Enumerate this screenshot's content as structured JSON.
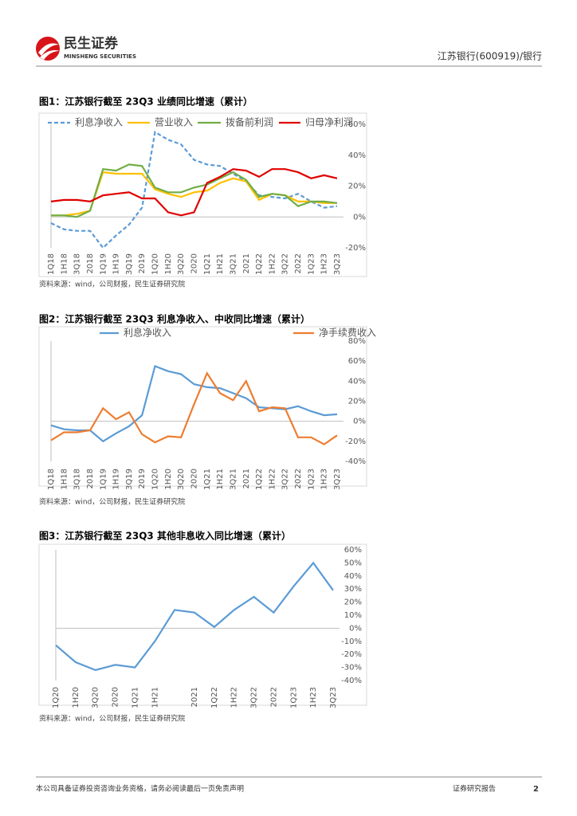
{
  "header": {
    "logo_cn": "民生证券",
    "logo_en": "MINSHENG SECURITIES",
    "right": "江苏银行(600919)/银行"
  },
  "chart_data": [
    {
      "type": "line",
      "title": "图1：江苏银行截至 23Q3 业绩同比增速（累计）",
      "source": "资料来源：wind，公司财报，民生证券研究院",
      "categories": [
        "1Q18",
        "1H18",
        "3Q18",
        "2018",
        "1Q19",
        "1H19",
        "3Q19",
        "2019",
        "1Q20",
        "1H20",
        "3Q20",
        "2020",
        "1Q21",
        "1H21",
        "3Q21",
        "2021",
        "1Q22",
        "1H22",
        "3Q22",
        "2022",
        "1Q23",
        "1H23",
        "3Q23"
      ],
      "series": [
        {
          "name": "利息净收入",
          "color": "#5b9bd5",
          "style": "dashed",
          "values": [
            -4,
            -8,
            -9,
            -9,
            -20,
            -12,
            -5,
            6,
            55,
            50,
            47,
            37,
            34,
            33,
            28,
            23,
            14,
            13,
            12,
            15,
            10,
            6,
            7
          ]
        },
        {
          "name": "营业收入",
          "color": "#ffc000",
          "values": [
            1,
            1,
            2,
            4,
            29,
            28,
            28,
            28,
            18,
            15,
            13,
            16,
            17,
            22,
            25,
            23,
            11,
            15,
            14,
            10,
            10,
            9,
            9
          ]
        },
        {
          "name": "拨备前利润",
          "color": "#70ad47",
          "values": [
            1,
            1,
            0,
            4,
            31,
            30,
            34,
            33,
            19,
            16,
            16,
            19,
            21,
            25,
            29,
            24,
            13,
            15,
            14,
            7,
            10,
            10,
            9
          ]
        },
        {
          "name": "归母净利润",
          "color": "#e00000",
          "values": [
            10,
            11,
            11,
            10,
            14,
            15,
            16,
            12,
            12,
            3,
            1,
            3,
            22,
            26,
            31,
            30,
            26,
            31,
            31,
            29,
            25,
            27,
            25
          ]
        }
      ],
      "ylim": [
        -20,
        60
      ],
      "yticks": [
        {
          "value": -20,
          "label": "-20%"
        },
        {
          "value": 0,
          "label": "0%"
        },
        {
          "value": 20,
          "label": "20%"
        },
        {
          "value": 40,
          "label": "40%"
        },
        {
          "value": 60,
          "label": "60%"
        }
      ],
      "legend": "top",
      "grid": false
    },
    {
      "type": "line",
      "title": "图2：江苏银行截至 23Q3 利息净收入、中收同比增速（累计）",
      "source": "资料来源：wind，公司财报，民生证券研究院",
      "categories": [
        "1Q18",
        "1H18",
        "3Q18",
        "2018",
        "1Q19",
        "1H19",
        "3Q19",
        "2019",
        "1Q20",
        "1H20",
        "3Q20",
        "2020",
        "1Q21",
        "1H21",
        "3Q21",
        "2021",
        "1Q22",
        "1H22",
        "3Q22",
        "2022",
        "1Q23",
        "1H23",
        "3Q23"
      ],
      "series": [
        {
          "name": "利息净收入",
          "color": "#5b9bd5",
          "values": [
            -4,
            -8,
            -9,
            -9,
            -20,
            -12,
            -5,
            6,
            55,
            50,
            47,
            37,
            34,
            33,
            28,
            23,
            14,
            13,
            12,
            15,
            10,
            6,
            7
          ]
        },
        {
          "name": "净手续费收入",
          "color": "#ed7d31",
          "values": [
            -19,
            -11,
            -11,
            -9,
            13,
            2,
            9,
            -13,
            -21,
            -15,
            -16,
            17,
            48,
            28,
            21,
            40,
            10,
            14,
            13,
            -16,
            -16,
            -23,
            -14
          ]
        }
      ],
      "ylim": [
        -40,
        80
      ],
      "yticks": [
        {
          "value": -40,
          "label": "-40%"
        },
        {
          "value": -20,
          "label": "-20%"
        },
        {
          "value": 0,
          "label": "0%"
        },
        {
          "value": 20,
          "label": "20%"
        },
        {
          "value": 40,
          "label": "40%"
        },
        {
          "value": 60,
          "label": "60%"
        },
        {
          "value": 80,
          "label": "80%"
        }
      ],
      "legend": "top",
      "grid": false
    },
    {
      "type": "line",
      "title": "图3：江苏银行截至 23Q3 其他非息收入同比增速（累计）",
      "source": "资料来源：wind，公司财报，民生证券研究院",
      "categories": [
        "1Q20",
        "1H20",
        "3Q20",
        "2020",
        "1Q21",
        "1H21",
        null,
        "2021",
        "1Q22",
        "1H22",
        "3Q22",
        "2022",
        "1Q23",
        "1H23",
        "3Q23"
      ],
      "series": [
        {
          "color": "#5b9bd5",
          "values": [
            -13,
            -26,
            -32,
            -28,
            -30,
            -10,
            14,
            12,
            1,
            14,
            24,
            12,
            32,
            50,
            29
          ]
        }
      ],
      "ylim": [
        -40,
        60
      ],
      "yticks": [
        {
          "value": -40,
          "label": "-40%"
        },
        {
          "value": -30,
          "label": "-30%"
        },
        {
          "value": -20,
          "label": "-20%"
        },
        {
          "value": -10,
          "label": "-10%"
        },
        {
          "value": 0,
          "label": "0%"
        },
        {
          "value": 10,
          "label": "10%"
        },
        {
          "value": 20,
          "label": "20%"
        },
        {
          "value": 30,
          "label": "30%"
        },
        {
          "value": 40,
          "label": "40%"
        },
        {
          "value": 50,
          "label": "50%"
        },
        {
          "value": 60,
          "label": "60%"
        }
      ],
      "grid": false
    }
  ],
  "footer": {
    "disclaimer": "本公司具备证券投资咨询业务资格，请务必阅读最后一页免责声明",
    "report_type": "证券研究报告",
    "page": 2
  }
}
